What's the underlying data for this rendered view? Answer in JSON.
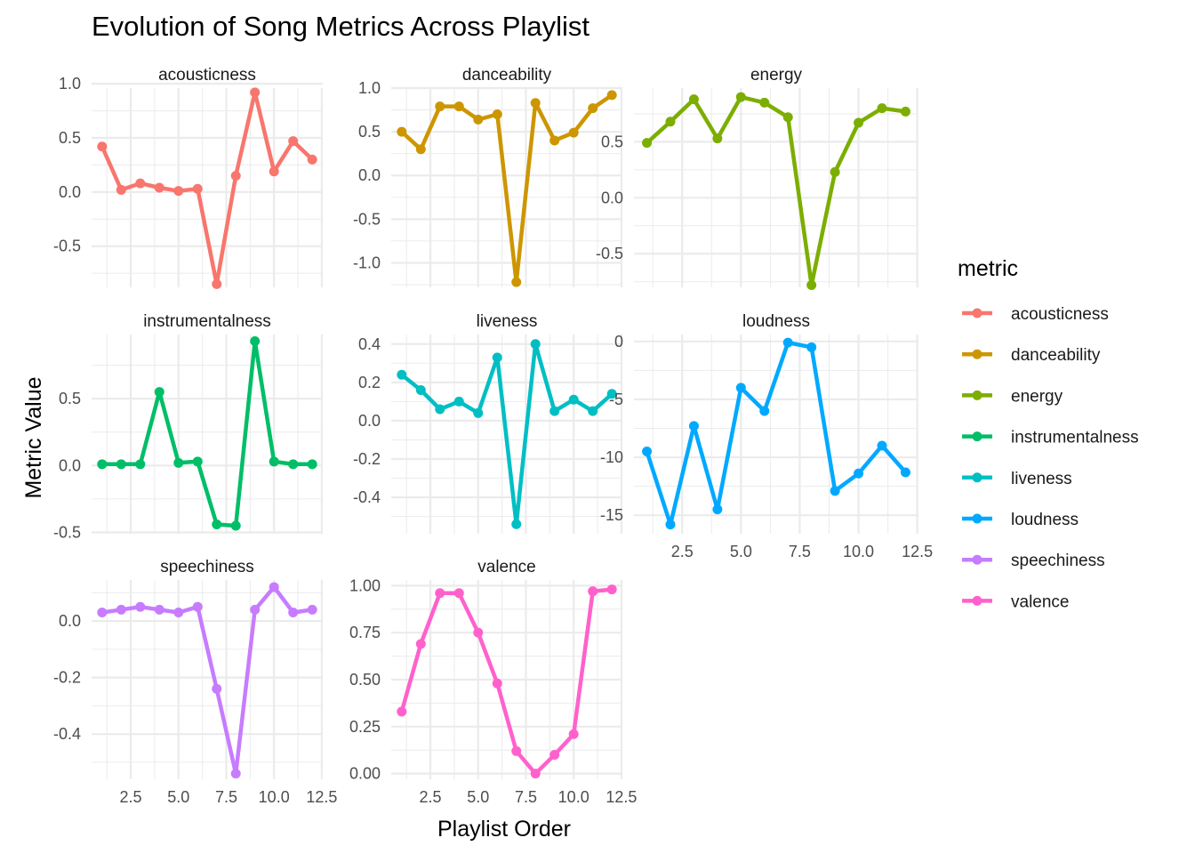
{
  "chart_data": {
    "type": "line",
    "title": "Evolution of Song Metrics Across Playlist",
    "xlabel": "Playlist Order",
    "ylabel": "Metric Value",
    "legend_title": "metric",
    "legend_position": "right",
    "grid": true,
    "x": [
      1,
      2,
      3,
      4,
      5,
      6,
      7,
      8,
      9,
      10,
      11,
      12
    ],
    "x_ticks": [
      "2.5",
      "5.0",
      "7.5",
      "10.0",
      "12.5"
    ],
    "series": [
      {
        "name": "acousticness",
        "color": "#F8766D",
        "ylim": [
          -0.88,
          0.96
        ],
        "y_ticks": [
          1.0,
          0.5,
          0.0,
          -0.5
        ],
        "y_tick_labels": [
          "1.0",
          "0.5",
          "0.0",
          "-0.5"
        ],
        "values": [
          0.42,
          0.02,
          0.08,
          0.04,
          0.01,
          0.03,
          -0.85,
          0.15,
          0.92,
          0.19,
          0.47,
          0.3
        ]
      },
      {
        "name": "danceability",
        "color": "#CD9600",
        "ylim": [
          -1.28,
          1.0
        ],
        "y_ticks": [
          1.0,
          0.5,
          0.0,
          -0.5,
          -1.0
        ],
        "y_tick_labels": [
          "1.0",
          "0.5",
          "0.0",
          "-0.5",
          "-1.0"
        ],
        "values": [
          0.5,
          0.3,
          0.79,
          0.79,
          0.64,
          0.7,
          -1.22,
          0.83,
          0.4,
          0.49,
          0.77,
          0.92
        ]
      },
      {
        "name": "energy",
        "color": "#7CAE00",
        "ylim": [
          -0.8,
          0.98
        ],
        "y_ticks": [
          0.5,
          0.0,
          -0.5
        ],
        "y_tick_labels": [
          "0.5",
          "0.0",
          "-0.5"
        ],
        "values": [
          0.49,
          0.68,
          0.88,
          0.53,
          0.9,
          0.85,
          0.72,
          -0.78,
          0.23,
          0.67,
          0.8,
          0.77
        ]
      },
      {
        "name": "instrumentalness",
        "color": "#00BE67",
        "ylim": [
          -0.51,
          0.98
        ],
        "y_ticks": [
          0.5,
          0.0,
          -0.5
        ],
        "y_tick_labels": [
          "0.5",
          "0.0",
          "-0.5"
        ],
        "values": [
          0.01,
          0.01,
          0.01,
          0.55,
          0.02,
          0.03,
          -0.44,
          -0.45,
          0.93,
          0.03,
          0.01,
          0.01
        ]
      },
      {
        "name": "liveness",
        "color": "#00BFC4",
        "ylim": [
          -0.59,
          0.45
        ],
        "y_ticks": [
          0.4,
          0.2,
          0.0,
          -0.2,
          -0.4
        ],
        "y_tick_labels": [
          "0.4",
          "0.2",
          "0.0",
          "-0.2",
          "-0.4"
        ],
        "values": [
          0.24,
          0.16,
          0.06,
          0.1,
          0.04,
          0.33,
          -0.54,
          0.4,
          0.05,
          0.11,
          0.05,
          0.14
        ]
      },
      {
        "name": "loudness",
        "color": "#00A9FF",
        "ylim": [
          -16.6,
          0.6
        ],
        "y_ticks": [
          0,
          -5,
          -10,
          -15
        ],
        "y_tick_labels": [
          "0",
          "-5",
          "-10",
          "-15"
        ],
        "values": [
          -9.5,
          -15.8,
          -7.3,
          -14.5,
          -4.0,
          -6.0,
          -0.1,
          -0.5,
          -12.9,
          -11.4,
          -9.0,
          -11.3
        ]
      },
      {
        "name": "speechiness",
        "color": "#C77CFF",
        "ylim": [
          -0.56,
          0.145
        ],
        "y_ticks": [
          0.0,
          -0.2,
          -0.4
        ],
        "y_tick_labels": [
          "0.0",
          "-0.2",
          "-0.4"
        ],
        "values": [
          0.03,
          0.04,
          0.05,
          0.04,
          0.03,
          0.05,
          -0.24,
          -0.54,
          0.04,
          0.12,
          0.03,
          0.04
        ]
      },
      {
        "name": "valence",
        "color": "#FF61CC",
        "ylim": [
          -0.03,
          1.03
        ],
        "y_ticks": [
          1.0,
          0.75,
          0.5,
          0.25,
          0.0
        ],
        "y_tick_labels": [
          "1.00",
          "0.75",
          "0.50",
          "0.25",
          "0.00"
        ],
        "values": [
          0.33,
          0.69,
          0.96,
          0.96,
          0.75,
          0.48,
          0.12,
          0.0,
          0.1,
          0.21,
          0.97,
          0.98
        ]
      }
    ]
  }
}
